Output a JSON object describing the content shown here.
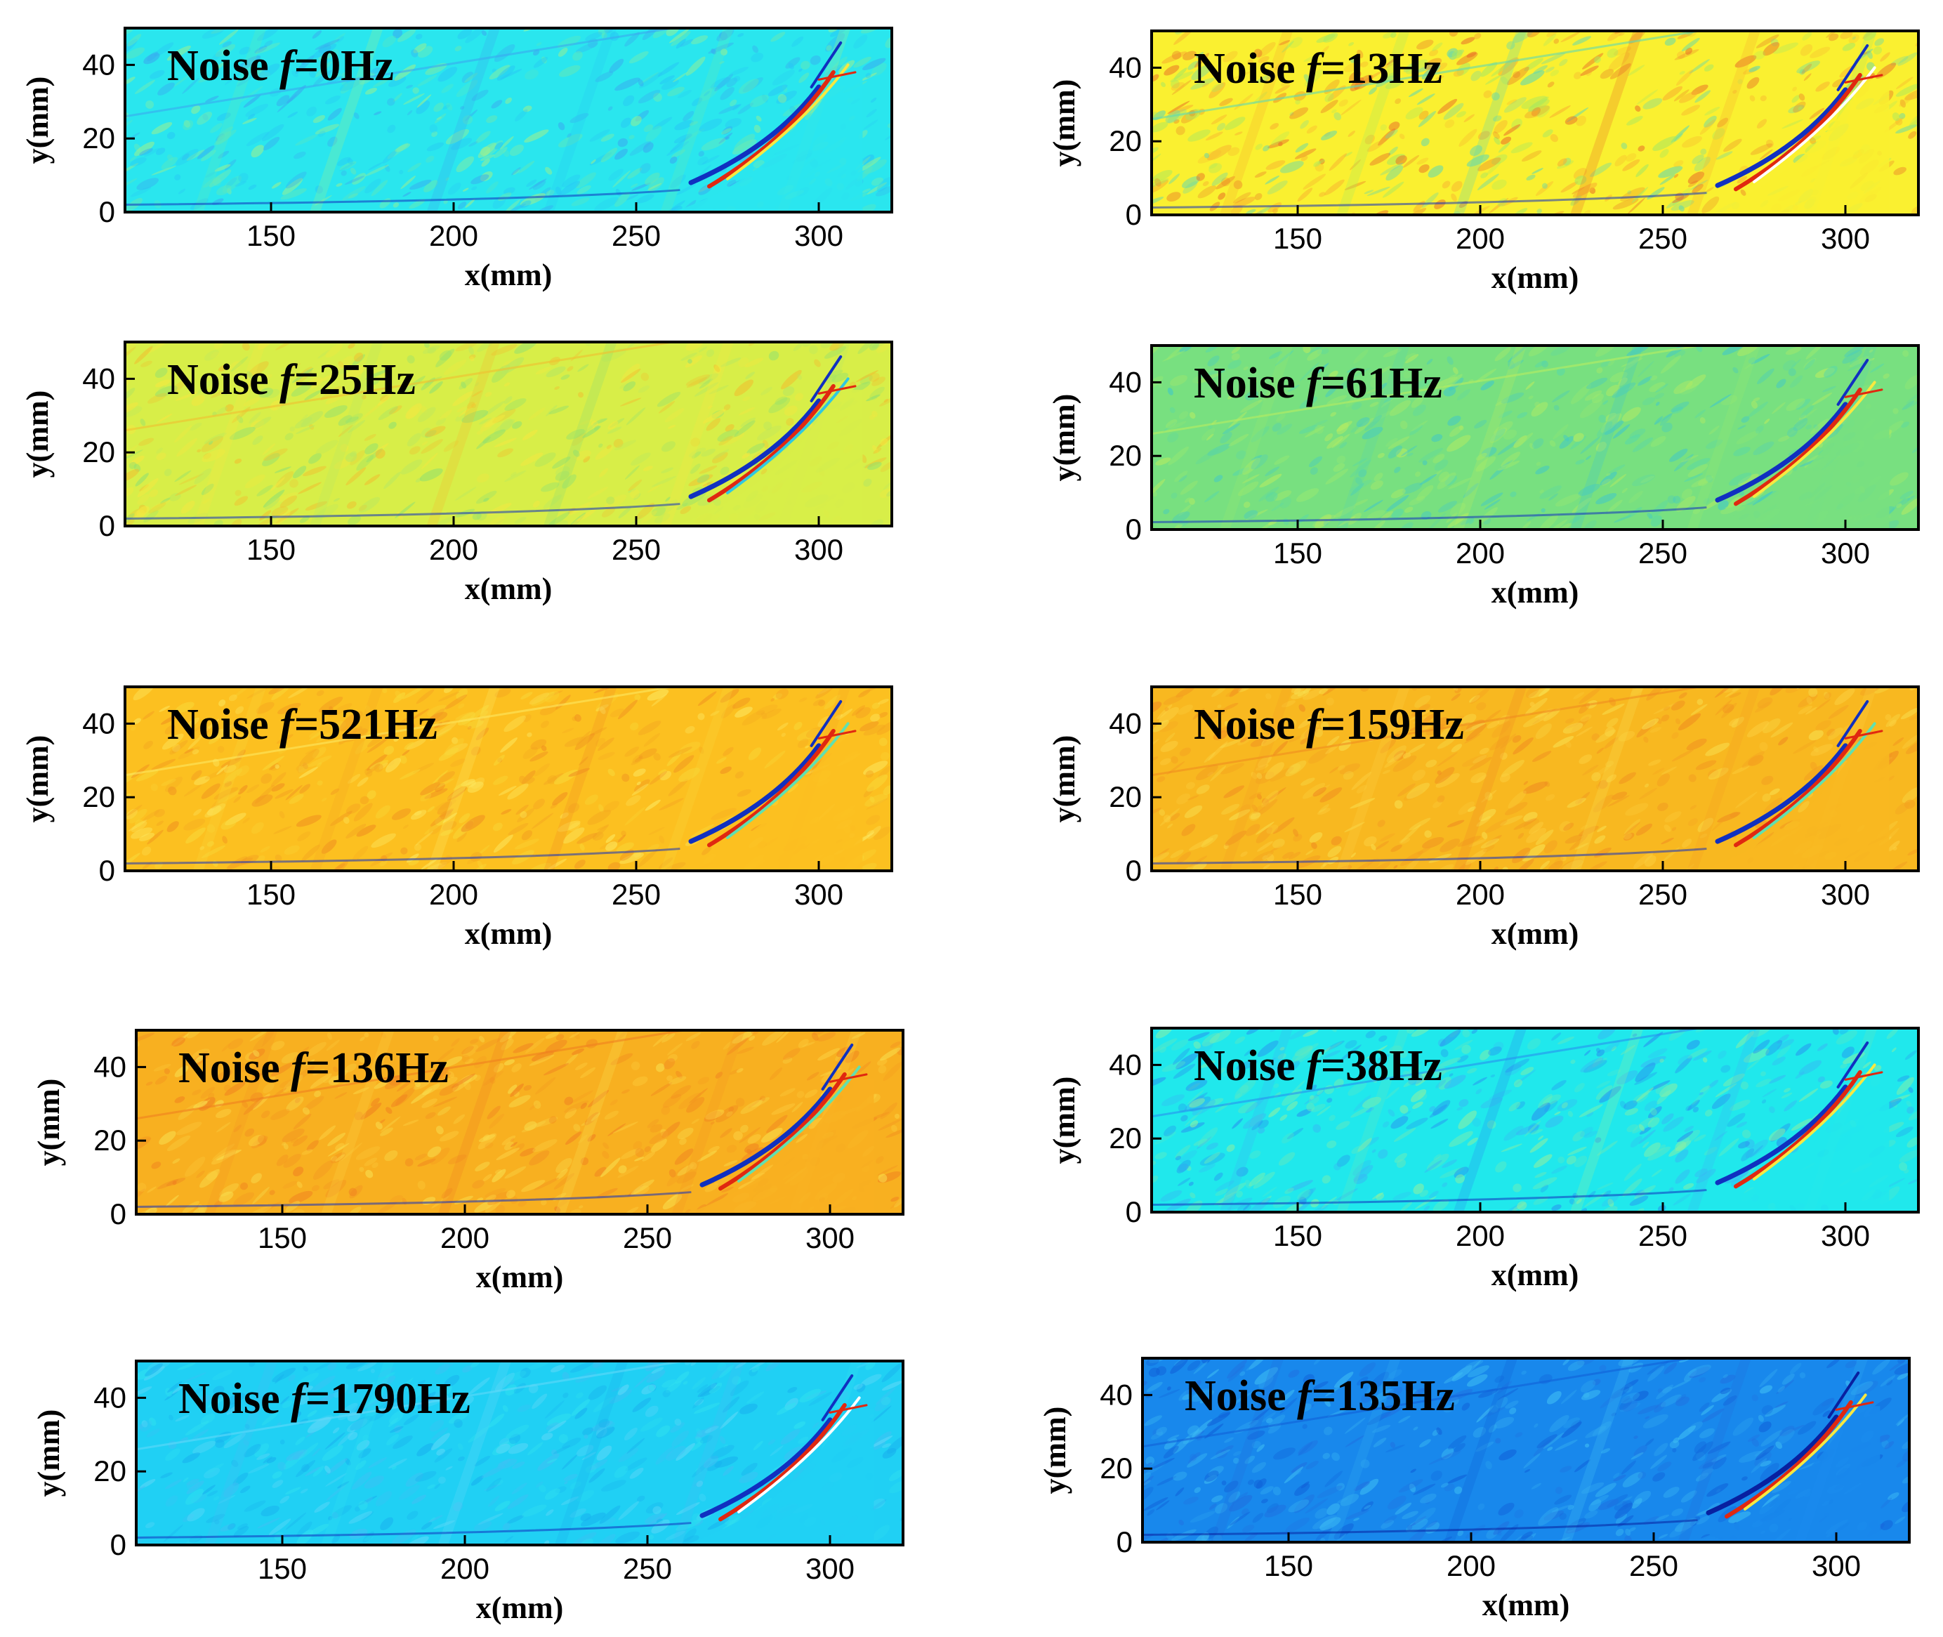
{
  "figure": {
    "panel_label_prefix": "Noise ",
    "freq_symbol": "f",
    "freq_unit": "Hz"
  },
  "chart_data": [
    {
      "type": "heatmap",
      "panel": "left-row1",
      "title": "Noise f=0Hz",
      "frequency_hz": 0,
      "xlabel": "x(mm)",
      "ylabel": "y(mm)",
      "xlim": [
        110,
        320
      ],
      "ylim": [
        0,
        50
      ],
      "xticks": [
        150,
        200,
        250,
        300
      ],
      "yticks": [
        0,
        20,
        40
      ],
      "background": "#2ae6ee",
      "noise_colors": [
        "#62e8b8",
        "#9af090",
        "#3aa8f0",
        "#28c8f4"
      ],
      "strong_colors": [
        "#1030c0",
        "#e02810",
        "#f8e840"
      ]
    },
    {
      "type": "heatmap",
      "panel": "right-row1",
      "title": "Noise f=13Hz",
      "frequency_hz": 13,
      "xlabel": "x(mm)",
      "ylabel": "y(mm)",
      "xlim": [
        110,
        320
      ],
      "ylim": [
        0,
        50
      ],
      "xticks": [
        150,
        200,
        250,
        300
      ],
      "yticks": [
        0,
        20,
        40
      ],
      "background": "#faf030",
      "noise_colors": [
        "#f8b030",
        "#a8e860",
        "#60d8b0",
        "#e87028"
      ],
      "strong_colors": [
        "#1030c0",
        "#e02810",
        "#ffffff"
      ]
    },
    {
      "type": "heatmap",
      "panel": "left-row2",
      "title": "Noise f=25Hz",
      "frequency_hz": 25,
      "xlabel": "x(mm)",
      "ylabel": "y(mm)",
      "xlim": [
        110,
        320
      ],
      "ylim": [
        0,
        50
      ],
      "xticks": [
        150,
        200,
        250,
        300
      ],
      "yticks": [
        0,
        20,
        40
      ],
      "background": "#d8ee48",
      "noise_colors": [
        "#f4e840",
        "#b8e860",
        "#f0c030",
        "#90e070"
      ],
      "strong_colors": [
        "#1030c0",
        "#e02810",
        "#30c8e0"
      ]
    },
    {
      "type": "heatmap",
      "panel": "right-row2",
      "title": "Noise f=61Hz",
      "frequency_hz": 61,
      "xlabel": "x(mm)",
      "ylabel": "y(mm)",
      "xlim": [
        110,
        320
      ],
      "ylim": [
        0,
        50
      ],
      "xticks": [
        150,
        200,
        250,
        300
      ],
      "yticks": [
        0,
        20,
        40
      ],
      "background": "#78e080",
      "noise_colors": [
        "#98e870",
        "#58d8a8",
        "#b8ec60",
        "#40c8c8"
      ],
      "strong_colors": [
        "#1030c0",
        "#e02810",
        "#f8e840"
      ]
    },
    {
      "type": "heatmap",
      "panel": "left-row3",
      "title": "Noise f=521Hz",
      "frequency_hz": 521,
      "xlabel": "x(mm)",
      "ylabel": "y(mm)",
      "xlim": [
        110,
        320
      ],
      "ylim": [
        0,
        50
      ],
      "xticks": [
        150,
        200,
        250,
        300
      ],
      "yticks": [
        0,
        20,
        40
      ],
      "background": "#fcc020",
      "noise_colors": [
        "#f8d838",
        "#f4a820",
        "#fce860",
        "#f09020"
      ],
      "strong_colors": [
        "#1030c0",
        "#e02810",
        "#60e0b0"
      ]
    },
    {
      "type": "heatmap",
      "panel": "right-row3",
      "title": "Noise f=159Hz",
      "frequency_hz": 159,
      "xlabel": "x(mm)",
      "ylabel": "y(mm)",
      "xlim": [
        110,
        320
      ],
      "ylim": [
        0,
        50
      ],
      "xticks": [
        150,
        200,
        250,
        300
      ],
      "yticks": [
        0,
        20,
        40
      ],
      "background": "#f8b820",
      "noise_colors": [
        "#f4a020",
        "#fcd040",
        "#f08c20",
        "#f8e050"
      ],
      "strong_colors": [
        "#1030c0",
        "#e02810",
        "#60e0b0"
      ]
    },
    {
      "type": "heatmap",
      "panel": "left-row4",
      "title": "Noise f=136Hz",
      "frequency_hz": 136,
      "xlabel": "x(mm)",
      "ylabel": "y(mm)",
      "xlim": [
        110,
        320
      ],
      "ylim": [
        0,
        50
      ],
      "xticks": [
        150,
        200,
        250,
        300
      ],
      "yticks": [
        0,
        20,
        40
      ],
      "background": "#f8b020",
      "noise_colors": [
        "#f49820",
        "#fcd040",
        "#f08020",
        "#f8e050"
      ],
      "strong_colors": [
        "#1030c0",
        "#e02810",
        "#60e0b0"
      ]
    },
    {
      "type": "heatmap",
      "panel": "right-row4",
      "title": "Noise f=38Hz",
      "frequency_hz": 38,
      "xlabel": "x(mm)",
      "ylabel": "y(mm)",
      "xlim": [
        110,
        320
      ],
      "ylim": [
        0,
        50
      ],
      "xticks": [
        150,
        200,
        250,
        300
      ],
      "yticks": [
        0,
        20,
        40
      ],
      "background": "#20e8ec",
      "noise_colors": [
        "#38b8f4",
        "#60e8c0",
        "#2890f0",
        "#90f0a0"
      ],
      "strong_colors": [
        "#1030c0",
        "#e02810",
        "#f8e840"
      ]
    },
    {
      "type": "heatmap",
      "panel": "left-row5",
      "title": "Noise f=1790Hz",
      "frequency_hz": 1790,
      "xlabel": "x(mm)",
      "ylabel": "y(mm)",
      "xlim": [
        110,
        320
      ],
      "ylim": [
        0,
        50
      ],
      "xticks": [
        150,
        200,
        250,
        300
      ],
      "yticks": [
        0,
        20,
        40
      ],
      "background": "#20d0f4",
      "noise_colors": [
        "#40c0f4",
        "#30e0f0",
        "#60d8f8",
        "#18b0ee"
      ],
      "strong_colors": [
        "#1030c0",
        "#e02810",
        "#ffffff"
      ]
    },
    {
      "type": "heatmap",
      "panel": "right-row5",
      "title": "Noise f=135Hz",
      "frequency_hz": 135,
      "xlabel": "x(mm)",
      "ylabel": "y(mm)",
      "xlim": [
        110,
        320
      ],
      "ylim": [
        0,
        50
      ],
      "xticks": [
        150,
        200,
        250,
        300
      ],
      "yticks": [
        0,
        20,
        40
      ],
      "background": "#1888ec",
      "noise_colors": [
        "#2070e0",
        "#30a8f0",
        "#1060d8",
        "#40c0f4"
      ],
      "strong_colors": [
        "#0820a0",
        "#e02810",
        "#f8e840"
      ]
    }
  ]
}
